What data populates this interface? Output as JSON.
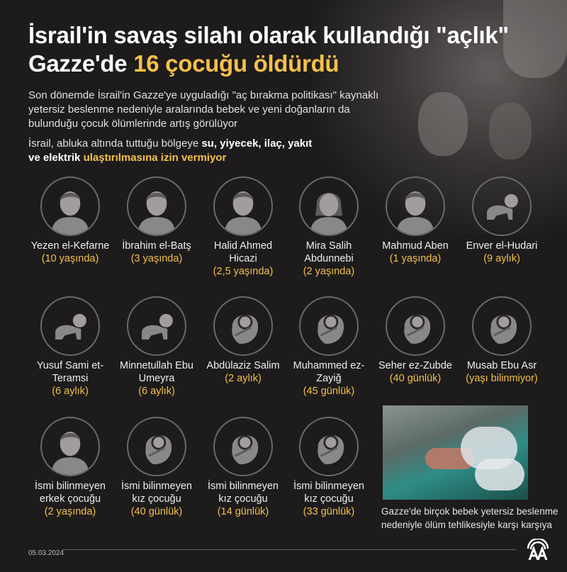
{
  "title": {
    "line1": "İsrail'in savaş silahı olarak kullandığı \"açlık\"",
    "line2_prefix": "Gazze'de ",
    "line2_highlight": "16 çocuğu öldürdü"
  },
  "intro": "Son dönemde İsrail'in Gazze'ye uyguladığı \"aç bırakma politikası\" kaynaklı yetersiz beslenme nedeniyle aralarında bebek ve yeni doğanların da bulunduğu çocuk ölümlerinde artış görülüyor",
  "note": {
    "prefix": "İsrail, abluka altında tuttuğu bölgeye ",
    "bold1": "su, yiyecek, ilaç, yakıt",
    "bold2": "ve elektrik ",
    "highlight": "ulaştırılmasına izin vermiyor"
  },
  "colors": {
    "accent": "#f5c04a",
    "background": "#1d1b1c"
  },
  "children": [
    {
      "name": "Yezen el-Kefarne",
      "age": "(10 yaşında)",
      "icon": "boy"
    },
    {
      "name": "İbrahim el-Batş",
      "age": "(3 yaşında)",
      "icon": "boy"
    },
    {
      "name": "Halid Ahmed Hicazi",
      "age": "(2,5 yaşında)",
      "icon": "boy"
    },
    {
      "name": "Mira Salih Abdunnebi",
      "age": "(2 yaşında)",
      "icon": "girl"
    },
    {
      "name": "Mahmud Aben",
      "age": "(1 yaşında)",
      "icon": "boy"
    },
    {
      "name": "Enver el-Hudari",
      "age": "(9 aylık)",
      "icon": "crawling-baby"
    },
    {
      "name": "Yusuf Sami et-Teramsi",
      "age": "(6 aylık)",
      "icon": "crawling-baby"
    },
    {
      "name": "Minnetullah Ebu Umeyra",
      "age": "(6 aylık)",
      "icon": "crawling-baby"
    },
    {
      "name": "Abdülaziz Salim",
      "age": "(2 aylık)",
      "icon": "swaddled-baby"
    },
    {
      "name": "Muhammed ez-Zayiğ",
      "age": "(45 günlük)",
      "icon": "swaddled-baby"
    },
    {
      "name": "Seher ez-Zubde",
      "age": "(40 günlük)",
      "icon": "swaddled-baby"
    },
    {
      "name": "Musab Ebu Asr",
      "age": "(yaşı bilinmiyor)",
      "icon": "swaddled-baby"
    },
    {
      "name": "İsmi bilinmeyen erkek çocuğu",
      "age": "(2 yaşında)",
      "icon": "boy"
    },
    {
      "name": "İsmi bilinmeyen kız çocuğu",
      "age": "(40 günlük)",
      "icon": "swaddled-baby"
    },
    {
      "name": "İsmi bilinmeyen kız çocuğu",
      "age": "(14 günlük)",
      "icon": "swaddled-baby"
    },
    {
      "name": "İsmi bilinmeyen kız çocuğu",
      "age": "(33 günlük)",
      "icon": "swaddled-baby"
    }
  ],
  "photo_caption": "Gazze'de birçok bebek yetersiz beslenme nedeniyle ölüm tehlikesiyle karşı karşıya",
  "date": "05.03.2024",
  "logo": "AA"
}
